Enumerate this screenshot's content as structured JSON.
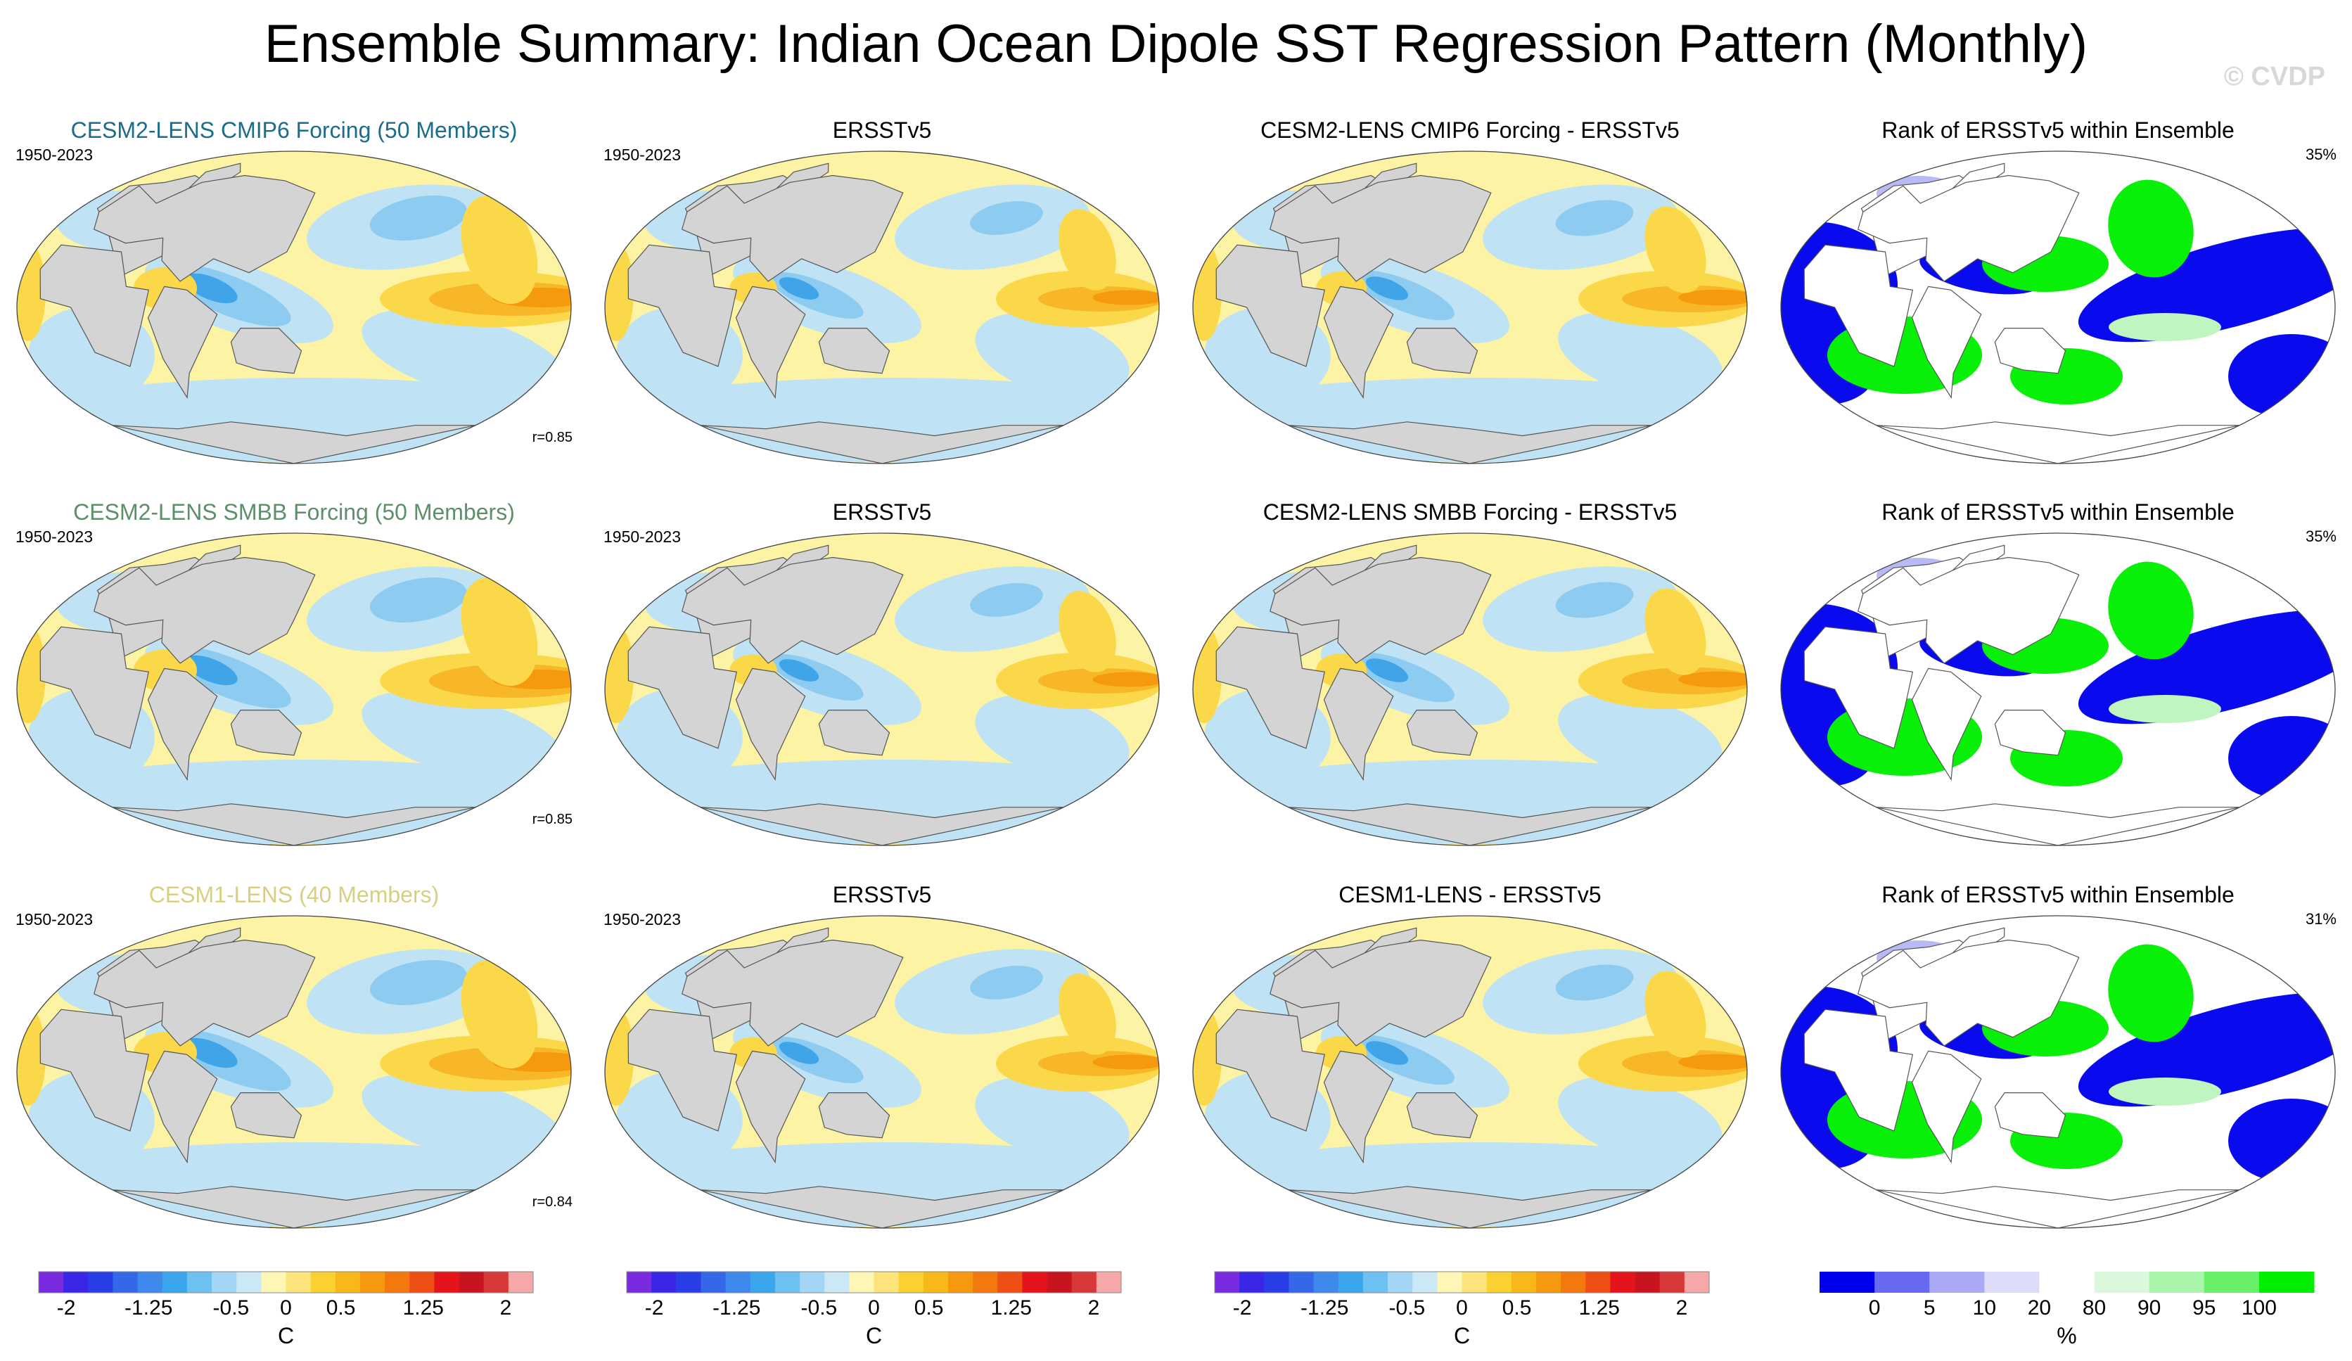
{
  "figure": {
    "title": "Ensemble Summary: Indian Ocean Dipole SST Regression Pattern (Monthly)",
    "watermark": "© CVDP"
  },
  "colors": {
    "land": "#d4d4d4",
    "ocean_neutral": "#fdf3a4",
    "cool1": "#bfe3f5",
    "cool2": "#8ecbf0",
    "cool3": "#3fa4e8",
    "warm1": "#fbd84a",
    "warm2": "#f8b728",
    "warm3": "#f49a0c",
    "rank_blue": "#0a0aee",
    "rank_lightblue": "#b9b9f5",
    "rank_green": "#08f008",
    "rank_lightgreen": "#bff5bf",
    "rank_white": "#ffffff"
  },
  "chart_data": [
    {
      "type": "heatmap",
      "row": 0,
      "col": 0,
      "kind": "model",
      "title": "CESM2-LENS CMIP6 Forcing (50 Members)",
      "title_color": "#1b6d8b",
      "period": "1950-2023",
      "pattern_correlation": "r=0.85",
      "intensity": 1.0
    },
    {
      "type": "heatmap",
      "row": 0,
      "col": 1,
      "kind": "obs",
      "title": "ERSSTv5",
      "title_color": "#000000",
      "period": "1950-2023",
      "intensity": 0.75
    },
    {
      "type": "heatmap",
      "row": 0,
      "col": 2,
      "kind": "diff",
      "title": "CESM2-LENS CMIP6 Forcing - ERSSTv5",
      "title_color": "#000000",
      "intensity": 0.8
    },
    {
      "type": "heatmap",
      "row": 0,
      "col": 3,
      "kind": "rank",
      "title": "Rank of ERSSTv5 within Ensemble",
      "title_color": "#000000",
      "percent_outside": "35%"
    },
    {
      "type": "heatmap",
      "row": 1,
      "col": 0,
      "kind": "model",
      "title": "CESM2-LENS SMBB Forcing (50 Members)",
      "title_color": "#5d8f6a",
      "period": "1950-2023",
      "pattern_correlation": "r=0.85",
      "intensity": 1.0
    },
    {
      "type": "heatmap",
      "row": 1,
      "col": 1,
      "kind": "obs",
      "title": "ERSSTv5",
      "title_color": "#000000",
      "period": "1950-2023",
      "intensity": 0.75
    },
    {
      "type": "heatmap",
      "row": 1,
      "col": 2,
      "kind": "diff",
      "title": "CESM2-LENS SMBB Forcing - ERSSTv5",
      "title_color": "#000000",
      "intensity": 0.8
    },
    {
      "type": "heatmap",
      "row": 1,
      "col": 3,
      "kind": "rank",
      "title": "Rank of ERSSTv5 within Ensemble",
      "title_color": "#000000",
      "percent_outside": "35%"
    },
    {
      "type": "heatmap",
      "row": 2,
      "col": 0,
      "kind": "model",
      "title": "CESM1-LENS (40 Members)",
      "title_color": "#d9cf80",
      "period": "1950-2023",
      "pattern_correlation": "r=0.84",
      "intensity": 1.0
    },
    {
      "type": "heatmap",
      "row": 2,
      "col": 1,
      "kind": "obs",
      "title": "ERSSTv5",
      "title_color": "#000000",
      "period": "1950-2023",
      "intensity": 0.75
    },
    {
      "type": "heatmap",
      "row": 2,
      "col": 2,
      "kind": "diff",
      "title": "CESM1-LENS - ERSSTv5",
      "title_color": "#000000",
      "intensity": 0.8
    },
    {
      "type": "heatmap",
      "row": 2,
      "col": 3,
      "kind": "rank",
      "title": "Rank of ERSSTv5 within Ensemble",
      "title_color": "#000000",
      "percent_outside": "31%"
    }
  ],
  "colorbars": {
    "sst": {
      "unit": "C",
      "range": [
        -2.25,
        2.25
      ],
      "colors": [
        "#7a2be0",
        "#3a26e6",
        "#2a3ee8",
        "#3568e9",
        "#3f88ec",
        "#3aa6ee",
        "#6cc1f2",
        "#a2d6f4",
        "#cbe8f6",
        "#fdf6b6",
        "#fde47a",
        "#fbd031",
        "#f8b81a",
        "#f6990f",
        "#f3790f",
        "#ee4f14",
        "#e5141a",
        "#c8141e",
        "#d93838",
        "#f6a8a8"
      ],
      "tick_values": [
        -2,
        -1.25,
        -0.5,
        0,
        0.5,
        1.25,
        2
      ],
      "tick_labels": [
        "-2",
        "-1.25",
        "-0.5",
        "0",
        "0.5",
        "1.25",
        "2"
      ]
    },
    "rank": {
      "unit": "%",
      "colors": [
        "#0000ee",
        "#6969f2",
        "#a9a9f5",
        "#dcdcf8",
        "#ffffff",
        "#dcf8dc",
        "#a9f5a9",
        "#69f069",
        "#00ee00"
      ],
      "tick_labels": [
        "0",
        "5",
        "10",
        "20",
        "80",
        "90",
        "95",
        "100"
      ]
    }
  }
}
